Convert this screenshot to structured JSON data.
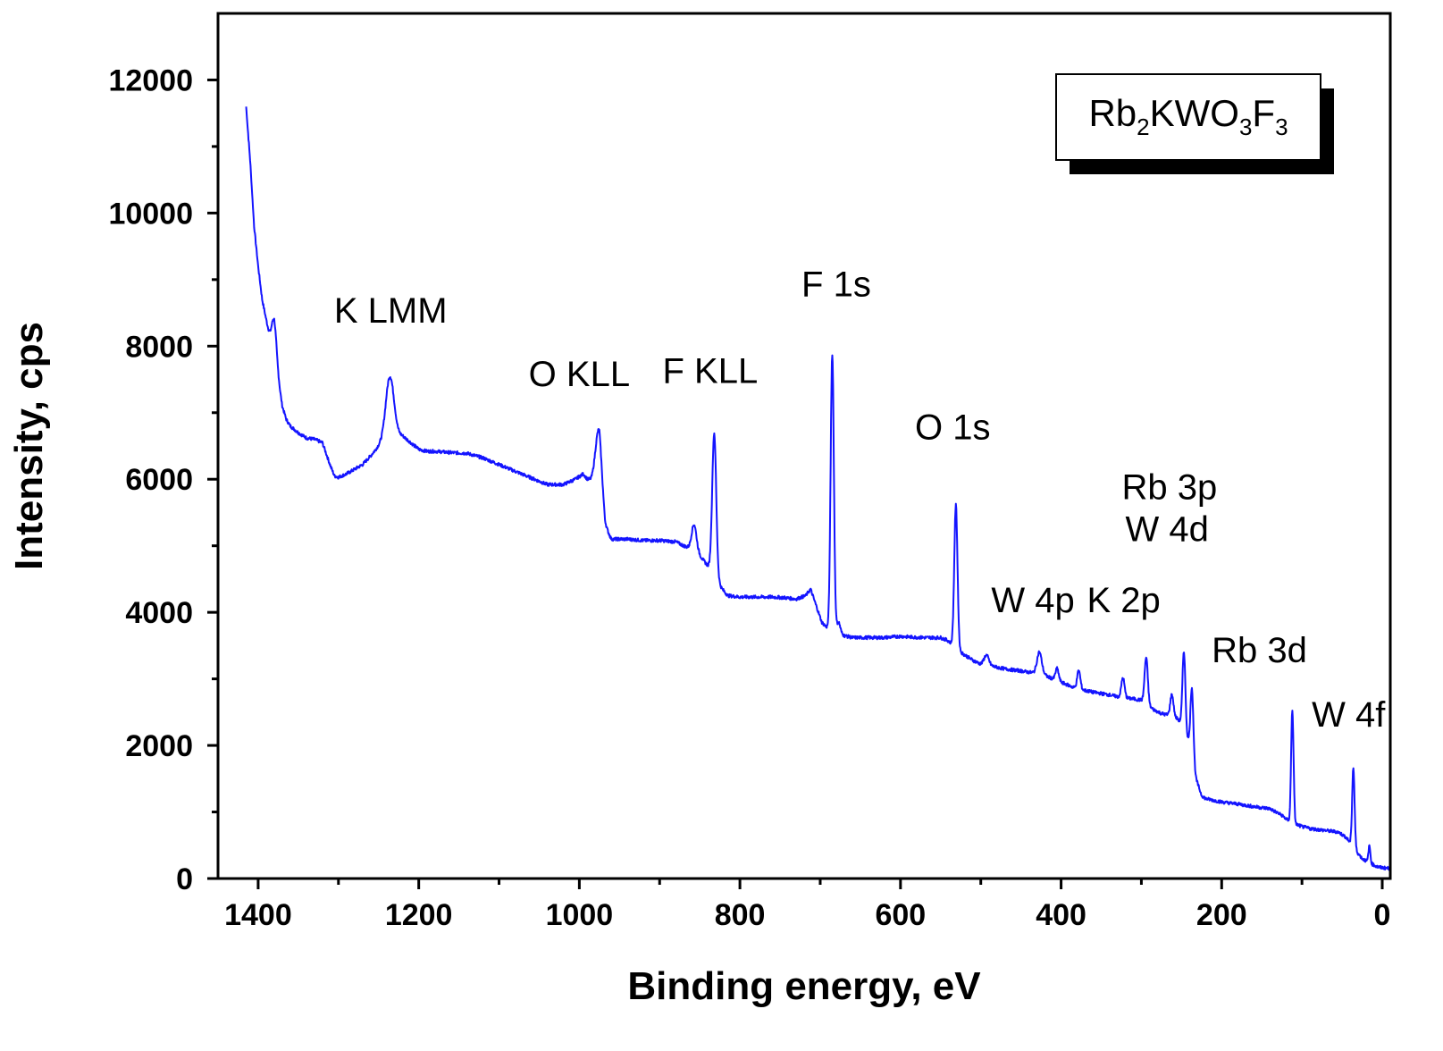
{
  "chart_data": {
    "type": "line",
    "title": "",
    "xlabel": "Binding energy, eV",
    "ylabel": "Intensity, cps",
    "xlim": [
      1450,
      -10
    ],
    "ylim": [
      0,
      13000
    ],
    "x_reversed": true,
    "xticks": [
      1400,
      1200,
      1000,
      800,
      600,
      400,
      200,
      0
    ],
    "yticks": [
      0,
      2000,
      4000,
      6000,
      8000,
      10000,
      12000
    ],
    "grid": false,
    "legend": {
      "position": "top-right",
      "base": [
        "Rb",
        "KWO",
        "F"
      ],
      "subscripts": [
        "2",
        "3",
        "3"
      ]
    },
    "series": [
      {
        "name": "Rb2KWO3F3",
        "color": "#1414ff",
        "background": [
          [
            1415,
            11600
          ],
          [
            1410,
            10800
          ],
          [
            1405,
            9800
          ],
          [
            1400,
            9200
          ],
          [
            1395,
            8700
          ],
          [
            1390,
            8400
          ],
          [
            1385,
            8100
          ],
          [
            1380,
            7900
          ],
          [
            1375,
            7500
          ],
          [
            1370,
            7100
          ],
          [
            1365,
            6900
          ],
          [
            1360,
            6800
          ],
          [
            1350,
            6700
          ],
          [
            1340,
            6620
          ],
          [
            1330,
            6600
          ],
          [
            1320,
            6550
          ],
          [
            1310,
            6200
          ],
          [
            1305,
            6050
          ],
          [
            1300,
            6030
          ],
          [
            1290,
            6080
          ],
          [
            1280,
            6150
          ],
          [
            1270,
            6220
          ],
          [
            1260,
            6350
          ],
          [
            1250,
            6500
          ],
          [
            1240,
            6620
          ],
          [
            1230,
            6680
          ],
          [
            1220,
            6650
          ],
          [
            1210,
            6550
          ],
          [
            1200,
            6450
          ],
          [
            1190,
            6420
          ],
          [
            1180,
            6420
          ],
          [
            1160,
            6400
          ],
          [
            1140,
            6390
          ],
          [
            1120,
            6320
          ],
          [
            1100,
            6220
          ],
          [
            1080,
            6120
          ],
          [
            1060,
            6020
          ],
          [
            1040,
            5920
          ],
          [
            1020,
            5920
          ],
          [
            1005,
            6000
          ],
          [
            995,
            6080
          ],
          [
            990,
            6000
          ],
          [
            985,
            5980
          ],
          [
            975,
            6050
          ],
          [
            968,
            5300
          ],
          [
            960,
            5100
          ],
          [
            940,
            5100
          ],
          [
            920,
            5080
          ],
          [
            900,
            5080
          ],
          [
            880,
            5060
          ],
          [
            870,
            5000
          ],
          [
            860,
            4950
          ],
          [
            850,
            4850
          ],
          [
            840,
            4700
          ],
          [
            830,
            4500
          ],
          [
            822,
            4350
          ],
          [
            815,
            4250
          ],
          [
            800,
            4230
          ],
          [
            780,
            4230
          ],
          [
            760,
            4230
          ],
          [
            745,
            4220
          ],
          [
            730,
            4200
          ],
          [
            718,
            4250
          ],
          [
            712,
            4350
          ],
          [
            705,
            4100
          ],
          [
            698,
            3850
          ],
          [
            690,
            3750
          ],
          [
            680,
            3720
          ],
          [
            670,
            3650
          ],
          [
            660,
            3620
          ],
          [
            640,
            3620
          ],
          [
            620,
            3620
          ],
          [
            600,
            3640
          ],
          [
            590,
            3630
          ],
          [
            570,
            3620
          ],
          [
            550,
            3620
          ],
          [
            540,
            3570
          ],
          [
            535,
            3500
          ],
          [
            525,
            3400
          ],
          [
            510,
            3280
          ],
          [
            500,
            3220
          ],
          [
            490,
            3200
          ],
          [
            470,
            3150
          ],
          [
            450,
            3120
          ],
          [
            440,
            3100
          ],
          [
            430,
            3080
          ],
          [
            420,
            3050
          ],
          [
            400,
            2950
          ],
          [
            380,
            2850
          ],
          [
            360,
            2800
          ],
          [
            340,
            2760
          ],
          [
            325,
            2720
          ],
          [
            310,
            2700
          ],
          [
            300,
            2680
          ],
          [
            292,
            2600
          ],
          [
            285,
            2540
          ],
          [
            275,
            2480
          ],
          [
            265,
            2450
          ],
          [
            255,
            2400
          ],
          [
            248,
            2300
          ],
          [
            240,
            2000
          ],
          [
            232,
            1500
          ],
          [
            225,
            1250
          ],
          [
            220,
            1200
          ],
          [
            200,
            1150
          ],
          [
            180,
            1120
          ],
          [
            160,
            1080
          ],
          [
            140,
            1050
          ],
          [
            125,
            950
          ],
          [
            115,
            850
          ],
          [
            100,
            780
          ],
          [
            90,
            750
          ],
          [
            70,
            720
          ],
          [
            55,
            700
          ],
          [
            45,
            620
          ],
          [
            35,
            450
          ],
          [
            25,
            300
          ],
          [
            15,
            230
          ],
          [
            5,
            170
          ],
          [
            -10,
            150
          ]
        ],
        "peaks": [
          {
            "center": 1380,
            "height": 500,
            "width": 3
          },
          {
            "center": 1236,
            "height": 900,
            "width": 5
          },
          {
            "center": 976,
            "height": 700,
            "width": 4
          },
          {
            "center": 857,
            "height": 400,
            "width": 3
          },
          {
            "center": 832,
            "height": 2150,
            "width": 2.5
          },
          {
            "center": 685,
            "height": 4150,
            "width": 2
          },
          {
            "center": 677,
            "height": 150,
            "width": 2
          },
          {
            "center": 531,
            "height": 2150,
            "width": 2
          },
          {
            "center": 493,
            "height": 150,
            "width": 3
          },
          {
            "center": 427,
            "height": 330,
            "width": 3
          },
          {
            "center": 405,
            "height": 180,
            "width": 2
          },
          {
            "center": 378,
            "height": 280,
            "width": 2
          },
          {
            "center": 323,
            "height": 300,
            "width": 2
          },
          {
            "center": 294,
            "height": 700,
            "width": 2
          },
          {
            "center": 262,
            "height": 330,
            "width": 2
          },
          {
            "center": 247,
            "height": 1150,
            "width": 1.8
          },
          {
            "center": 237,
            "height": 1050,
            "width": 1.8
          },
          {
            "center": 112,
            "height": 1700,
            "width": 1.5
          },
          {
            "center": 36,
            "height": 1200,
            "width": 1.5
          },
          {
            "center": 16,
            "height": 250,
            "width": 1.2
          }
        ]
      }
    ],
    "annotations": [
      {
        "text": "K LMM",
        "x": 1235,
        "y": 8350
      },
      {
        "text": "O KLL",
        "x": 1000,
        "y": 7400
      },
      {
        "text": "F KLL",
        "x": 837,
        "y": 7450
      },
      {
        "text": "F 1s",
        "x": 680,
        "y": 8750
      },
      {
        "text": "O 1s",
        "x": 535,
        "y": 6600
      },
      {
        "text": "Rb 3p",
        "x": 265,
        "y": 5700
      },
      {
        "text": "W 4d",
        "x": 268,
        "y": 5070
      },
      {
        "text": "W 4p",
        "x": 435,
        "y": 4000
      },
      {
        "text": "K 2p",
        "x": 322,
        "y": 4000
      },
      {
        "text": "Rb 3d",
        "x": 153,
        "y": 3250
      },
      {
        "text": "W 4f",
        "x": 42,
        "y": 2280
      }
    ]
  }
}
